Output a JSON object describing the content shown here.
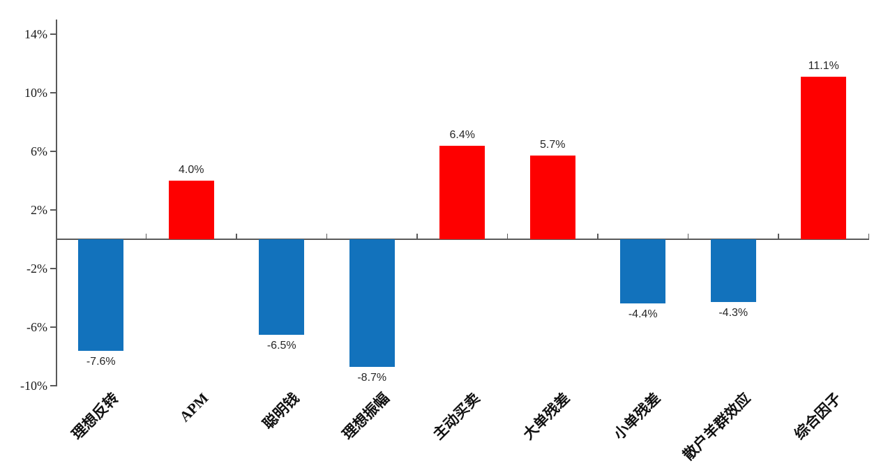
{
  "chart_data": {
    "type": "bar",
    "title": "",
    "xlabel": "",
    "ylabel": "",
    "categories": [
      "理想反转",
      "APM",
      "聪明钱",
      "理想振幅",
      "主动买卖",
      "大单残差",
      "小单残差",
      "散户羊群效应",
      "综合因子"
    ],
    "values": [
      -7.6,
      4.0,
      -6.5,
      -8.7,
      6.4,
      5.7,
      -4.4,
      -4.3,
      11.1
    ],
    "value_labels": [
      "-7.6%",
      "4.0%",
      "-6.5%",
      "-8.7%",
      "6.4%",
      "5.7%",
      "-4.4%",
      "-4.3%",
      "11.1%"
    ],
    "ytick_labels": [
      "14%",
      "10%",
      "6%",
      "2%",
      "-2%",
      "-6%",
      "-10%"
    ],
    "ytick_values": [
      14,
      10,
      6,
      2,
      -2,
      -6,
      -10
    ],
    "ylim": [
      -10,
      15
    ],
    "grid": false,
    "legend": false,
    "positive_color": "#fe0000",
    "negative_color": "#1272bc",
    "axis_color": "#595959"
  }
}
